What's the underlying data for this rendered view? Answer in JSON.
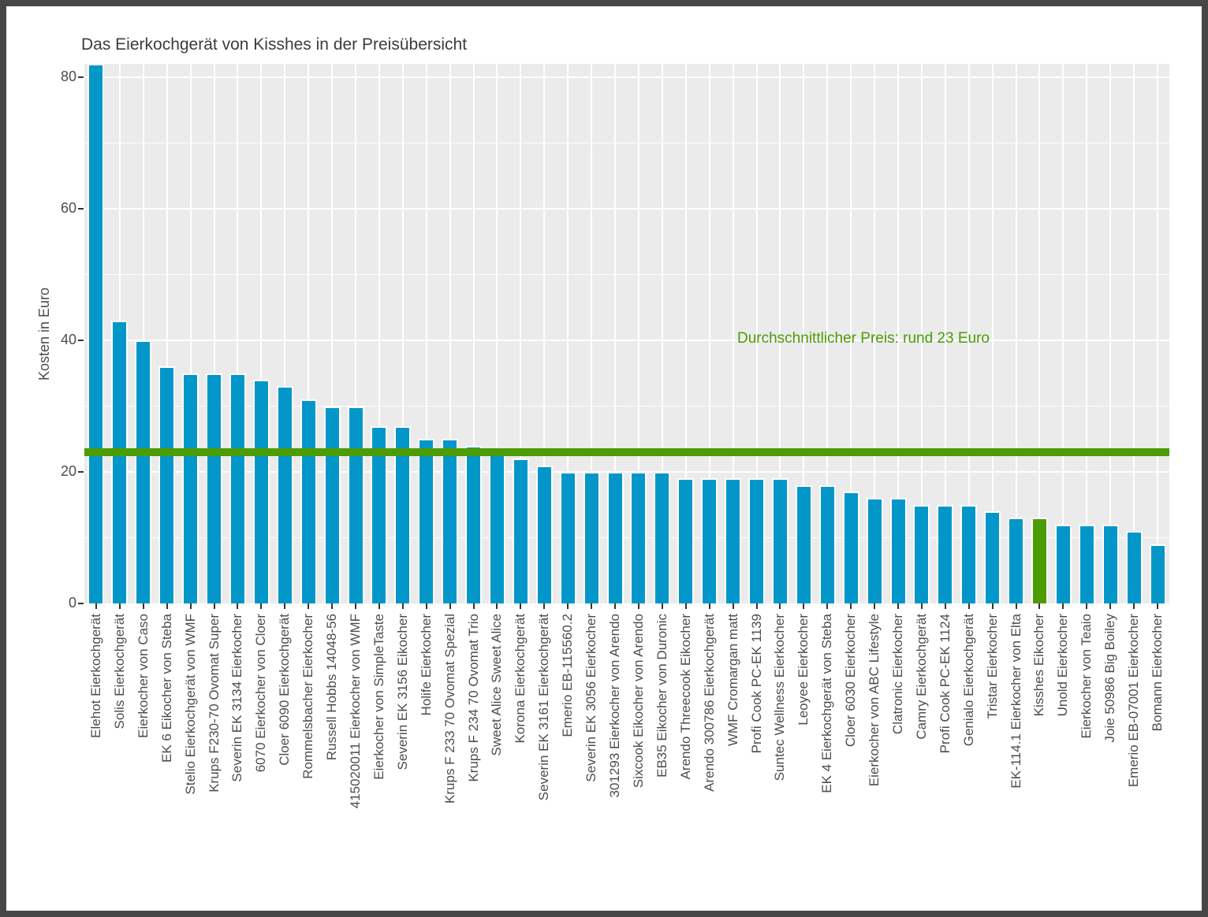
{
  "window": {
    "frame_border_color": "#474747",
    "background_color": "#ffffff"
  },
  "chart_data": {
    "type": "bar",
    "title": "Das Eierkochgerät von Kisshes in der Preisübersicht",
    "xlabel": "",
    "ylabel": "Kosten in Euro",
    "ylim": [
      0,
      82
    ],
    "yticks": [
      0,
      20,
      40,
      60,
      80
    ],
    "yticks_minor": [
      10,
      30,
      50,
      70
    ],
    "grid": "white major+minor gridlines on grey panel, vertical line at each category",
    "legend_position": "none",
    "panel_background": "#ebebeb",
    "gridline_color": "#ffffff",
    "bar_color": "#0397c9",
    "highlight_color": "#4c9c05",
    "highlight_index": 40,
    "axis_text_color": "#4d4d4d",
    "title_color": "#3c3c3c",
    "average_line": {
      "value": 23,
      "color": "#4c9c05",
      "label": "Durchschnittlicher Preis: rund 23 Euro",
      "label_color": "#4c9c05"
    },
    "categories": [
      "Elehot Eierkochgerät",
      "Solis Eierkochgerät",
      "Eierkocher von Caso",
      "EK 6 Eikocher von Steba",
      "Stelio Eierkochgerät von WMF",
      "Krups F230-70 Ovomat Super",
      "Severin EK 3134 Eierkocher",
      "6070 Eierkocher von Cloer",
      "Cloer 6090 Eierkochgerät",
      "Rommelsbacher Eierkocher",
      "Russell Hobbs 14048-56",
      "415020011 Eierkocher von WMF",
      "Eierkocher von SimpleTaste",
      "Severin EK 3156 Eikocher",
      "Holife Eierkocher",
      "Krups F 233 70 Ovomat Spezial",
      "Krups F 234 70 Ovomat Trio",
      "Sweet Alice Sweet Alice",
      "Korona Eierkochgerät",
      "Severin EK 3161 Eierkochgerät",
      "Emerio EB-115560.2",
      "Severin EK 3056 Eierkocher",
      "301293 Eierkocher von Arendo",
      "Sixcook Eikocher von Arendo",
      "EB35 Eikocher von Duronic",
      "Arendo Threecook Eikocher",
      "Arendo 300786 Eierkochgerät",
      "WMF Cromargan matt",
      "Profi Cook PC-EK 1139",
      "Suntec Wellness Eierkocher",
      "Leoyee Eierkocher",
      "EK 4 Eierkochgerät von Steba",
      "Cloer 6030 Eierkocher",
      "Eierkocher von ABC Lifestyle",
      "Clatronic Eierkocher",
      "Camry Eierkochgerät",
      "Profi Cook PC-EK 1124",
      "Genialo Eierkochgerät",
      "Tristar Eierkocher",
      "EK-114.1 Eierkocher von Elta",
      "Kisshes Eikocher",
      "Unold Eierkocher",
      "Eierkocher von Teaio",
      "Joie 50986 Big Boiley",
      "Emerio EB-07001 Eierkocher",
      "Bomann Eierkocher"
    ],
    "values": [
      82,
      43,
      40,
      36,
      35,
      35,
      35,
      34,
      33,
      31,
      30,
      30,
      27,
      27,
      25,
      25,
      24,
      23,
      22,
      21,
      20,
      20,
      20,
      20,
      20,
      19,
      19,
      19,
      19,
      19,
      18,
      18,
      17,
      16,
      16,
      15,
      15,
      15,
      14,
      13,
      13,
      12,
      12,
      12,
      11,
      9
    ]
  }
}
